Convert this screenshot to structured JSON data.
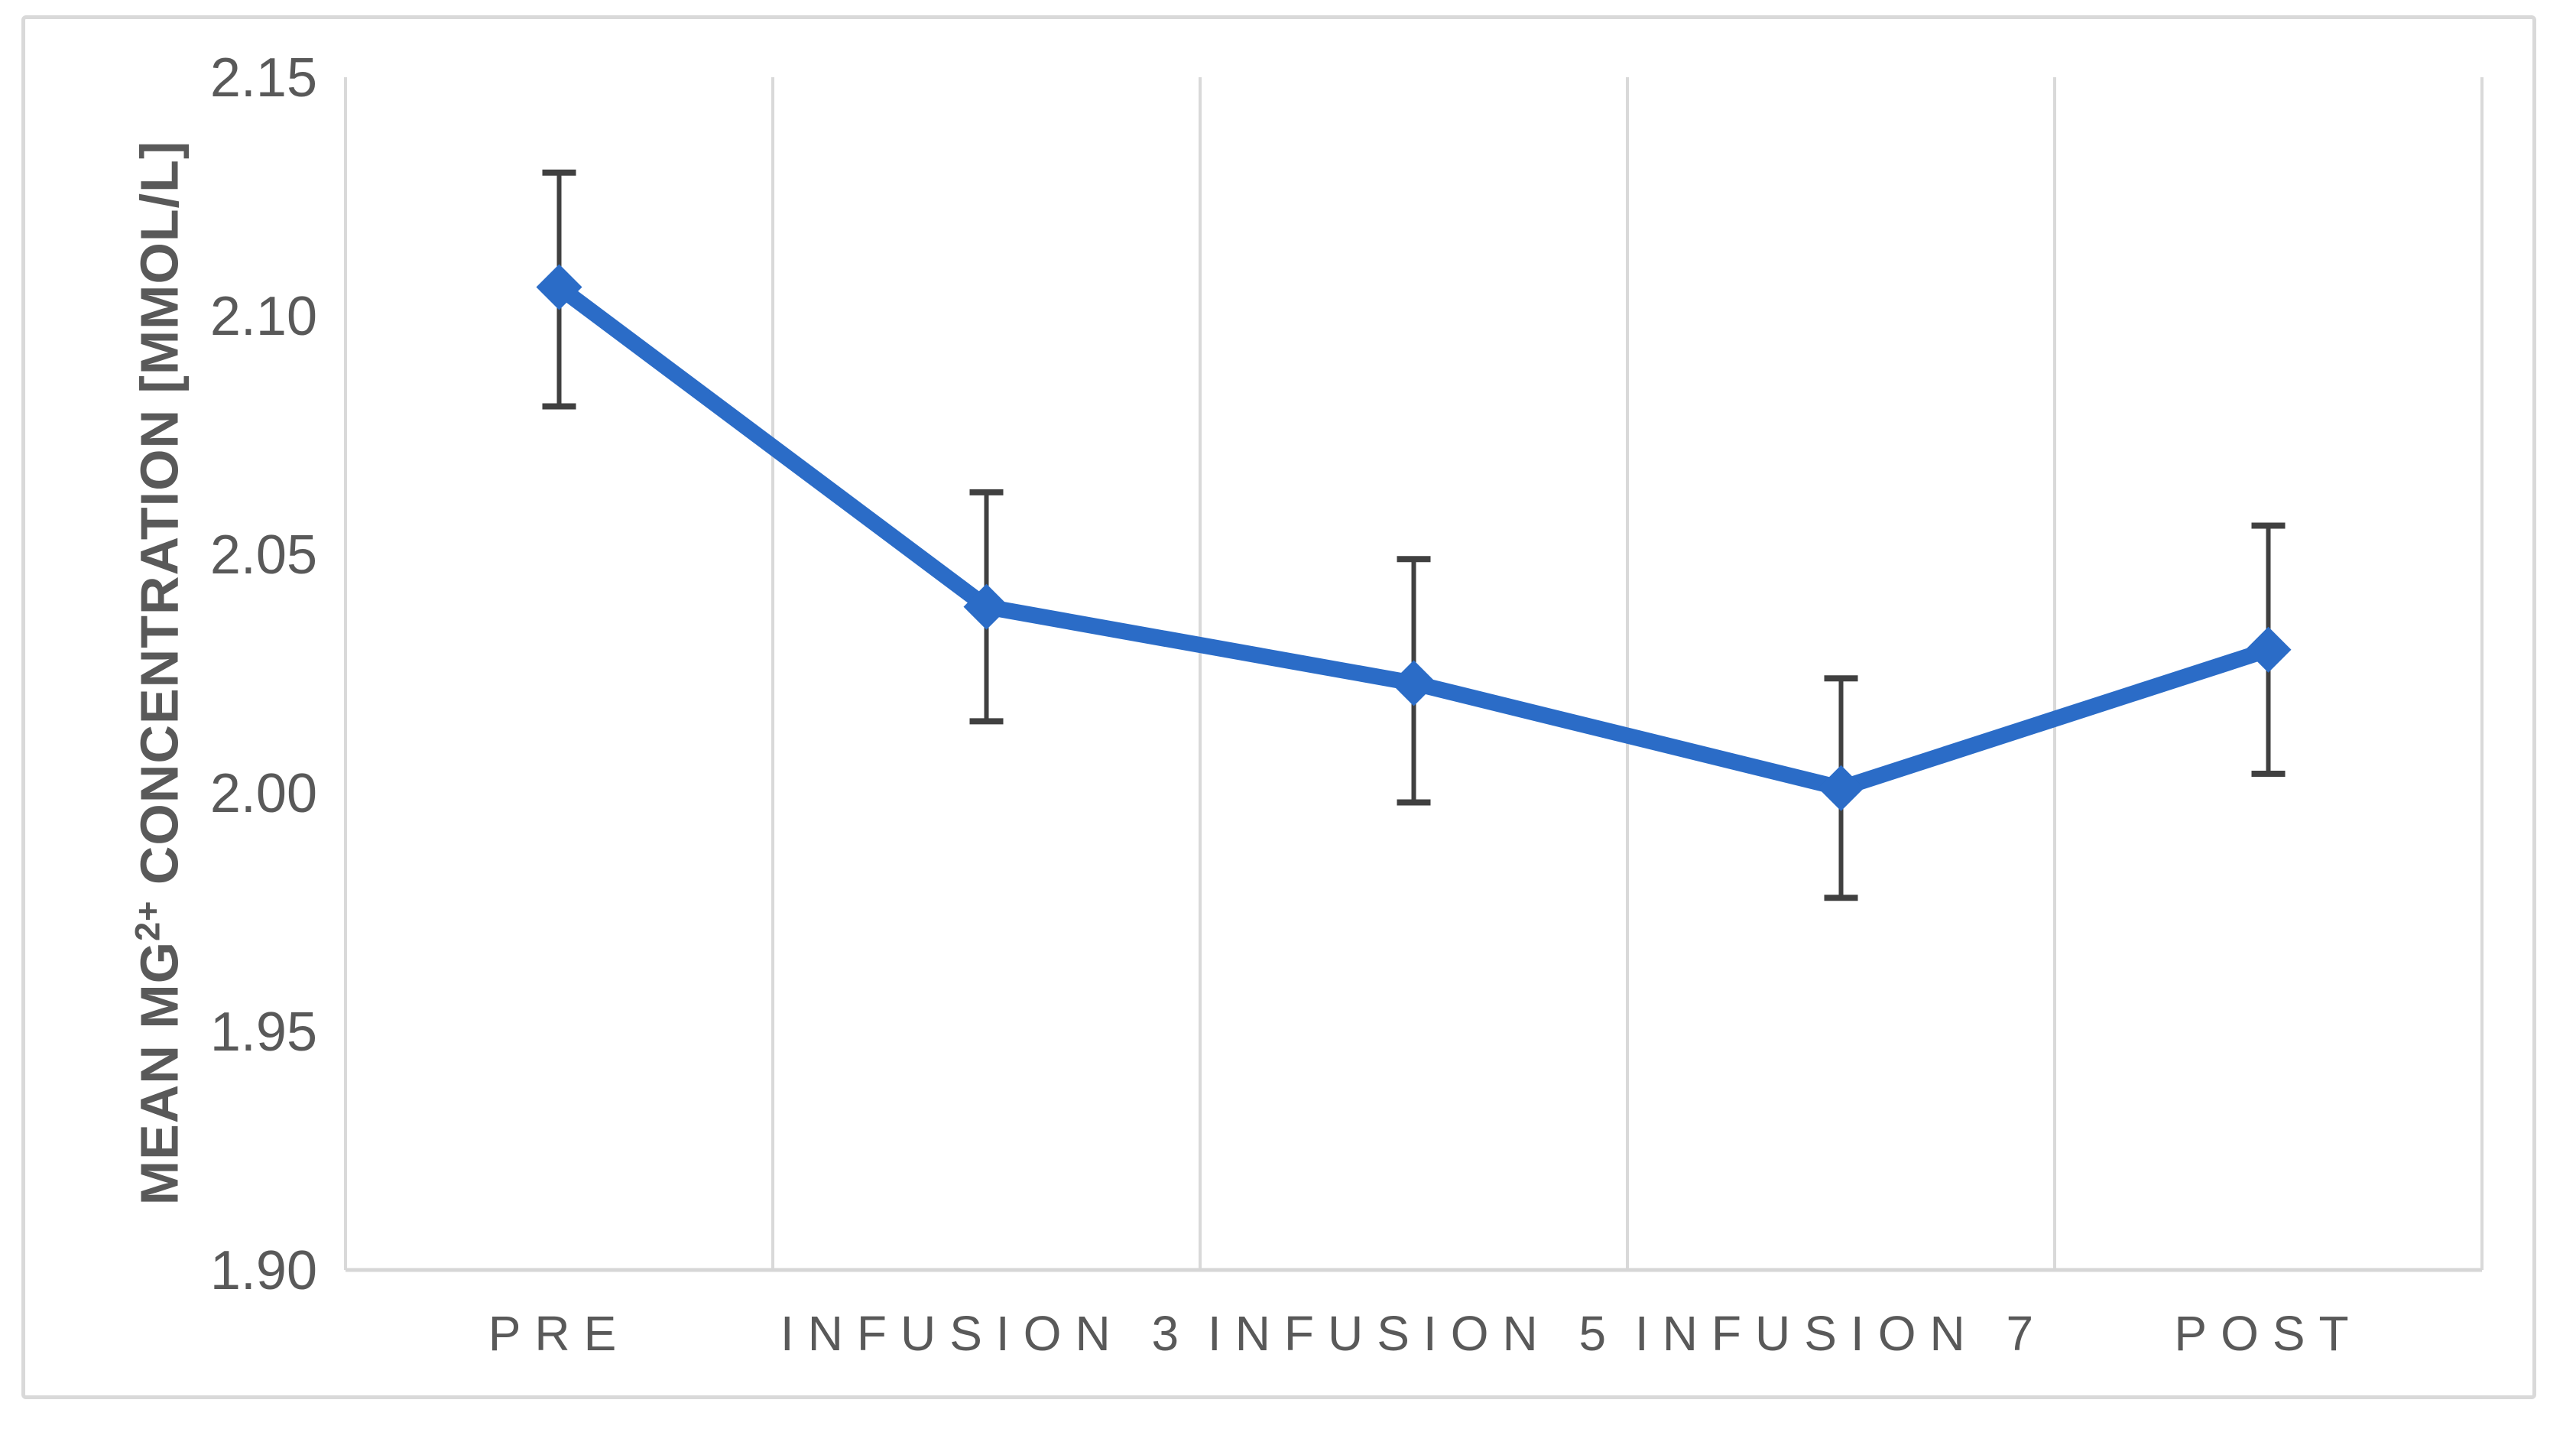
{
  "figure": {
    "background": "#FFFFFF",
    "border_color": "#D9D9D9"
  },
  "chart_data": {
    "type": "line",
    "title": "",
    "categories": [
      "PRE",
      "INFUSION 3",
      "INFUSION 5",
      "INFUSION 7",
      "POST"
    ],
    "values": [
      2.106,
      2.039,
      2.023,
      2.001,
      2.03
    ],
    "error_upper": [
      2.13,
      2.063,
      2.049,
      2.024,
      2.056
    ],
    "error_lower": [
      2.081,
      2.015,
      1.998,
      1.978,
      2.004
    ],
    "xlabel": "",
    "ylabel": "MEAN MG2+ CONCENTRATION [MMOL/L]",
    "ylabel_parts": {
      "pre": "MEAN MG",
      "sup": "2+",
      "post": " CONCENTRATION [MMOL/L]"
    },
    "ylim": [
      1.9,
      2.15
    ],
    "y_ticks": [
      {
        "value": 2.15,
        "label": "2.15"
      },
      {
        "value": 2.1,
        "label": "2.10"
      },
      {
        "value": 2.05,
        "label": "2.05"
      },
      {
        "value": 2.0,
        "label": "2.00"
      },
      {
        "value": 1.95,
        "label": "1.95"
      },
      {
        "value": 1.9,
        "label": "1.90"
      }
    ],
    "grid": "vertical-only",
    "legend_position": "none",
    "marker": "diamond",
    "colors": {
      "line": "#2B6CC7",
      "marker": "#2B6CC7",
      "error_bar": "#404040",
      "gridline": "#D9D9D9",
      "axis_line": "#D6D6D6",
      "tick_label": "#595959",
      "category_label": "#595959",
      "axis_title": "#595959"
    }
  }
}
